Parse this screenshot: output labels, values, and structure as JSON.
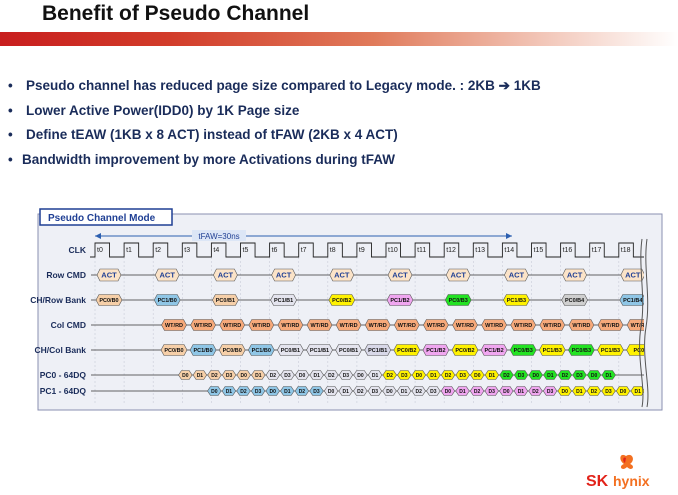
{
  "slide": {
    "title": "Benefit of Pseudo Channel",
    "bullets": [
      {
        "marker": "•",
        "text": "Pseudo channel has reduced page size compared to Legacy mode. : 2KB ➔ 1KB"
      },
      {
        "marker": "•",
        "text": "Lower Active Power(IDD0) by 1K Page size"
      },
      {
        "marker": "•",
        "text": "Define tEAW (1KB x 8 ACT) instead of tFAW (2KB x 4 ACT)"
      },
      {
        "marker": "•",
        "text": "Bandwidth improvement by more Activations during tFAW"
      }
    ]
  },
  "diagram": {
    "panel_title": "Pseudo Channel Mode",
    "tfaw_label": "tFAW=30ns",
    "signals": [
      "CLK",
      "Row CMD",
      "CH/Row Bank",
      "Col CMD",
      "CH/Col Bank",
      "PC0 - 64DQ",
      "PC1 - 64DQ"
    ],
    "clock_labels": [
      "t0",
      "t1",
      "t2",
      "t3",
      "t4",
      "t5",
      "t6",
      "t7",
      "t8",
      "t9",
      "t10",
      "t11",
      "t12",
      "t13",
      "t14",
      "t15",
      "t16",
      "t17",
      "t18"
    ],
    "act_label": "ACT",
    "row_banks": [
      {
        "label": "PC0/B0",
        "color": "#f6cfa8"
      },
      {
        "label": "PC1/B0",
        "color": "#8fc6e6"
      },
      {
        "label": "PC0/B1",
        "color": "#f6cfa8"
      },
      {
        "label": "PC1/B1",
        "color": "#e4e4ee"
      },
      {
        "label": "PC0/B2",
        "color": "#fff200"
      },
      {
        "label": "PC1/B2",
        "color": "#f0a6f0"
      },
      {
        "label": "PC0/B3",
        "color": "#23e223"
      },
      {
        "label": "PC1/B3",
        "color": "#fff200"
      },
      {
        "label": "PC0/B4",
        "color": "#cfcfcf"
      },
      {
        "label": "PC1/B4",
        "color": "#8fc6e6"
      }
    ],
    "col_cmd_label": "WT/RD",
    "col_banks": [
      {
        "label": "PC0/B0",
        "color": "#f6cfa8"
      },
      {
        "label": "PC1/B0",
        "color": "#8fc6e6"
      },
      {
        "label": "PC0/B0",
        "color": "#f6cfa8"
      },
      {
        "label": "PC1/B0",
        "color": "#8fc6e6"
      },
      {
        "label": "PC0/B1",
        "color": "#e4e4ee"
      },
      {
        "label": "PC1/B1",
        "color": "#e4e4ee"
      },
      {
        "label": "PC0/B1",
        "color": "#e4e4ee"
      },
      {
        "label": "PC1/B1",
        "color": "#d8d8e8"
      },
      {
        "label": "PC0/B2",
        "color": "#fff200"
      },
      {
        "label": "PC1/B2",
        "color": "#f0a6f0"
      },
      {
        "label": "PC0/B2",
        "color": "#fff200"
      },
      {
        "label": "PC1/B2",
        "color": "#f0a6f0"
      },
      {
        "label": "PC0/B3",
        "color": "#23e223"
      },
      {
        "label": "PC1/B3",
        "color": "#fff200"
      },
      {
        "label": "PC0/B3",
        "color": "#23e223"
      },
      {
        "label": "PC1/B3",
        "color": "#fff200"
      },
      {
        "label": "PC0/",
        "color": "#fff200"
      }
    ],
    "dq_labels": [
      "D0",
      "D1",
      "D2",
      "D3"
    ],
    "pc0_colors": [
      "#f6cfa8",
      "#f6cfa8",
      "#f6cfa8",
      "#f6cfa8",
      "#f6cfa8",
      "#f6cfa8",
      "#e4e4ee",
      "#e4e4ee",
      "#e4e4ee",
      "#e4e4ee",
      "#e4e4ee",
      "#e4e4ee",
      "#e4e4ee",
      "#e4e4ee",
      "#fff200",
      "#fff200",
      "#fff200",
      "#fff200",
      "#fff200",
      "#fff200",
      "#fff200",
      "#fff200",
      "#23e223",
      "#23e223",
      "#23e223",
      "#23e223",
      "#23e223",
      "#23e223",
      "#23e223",
      "#23e223"
    ],
    "pc1_colors": [
      "#8fc6e6",
      "#8fc6e6",
      "#8fc6e6",
      "#8fc6e6",
      "#8fc6e6",
      "#8fc6e6",
      "#8fc6e6",
      "#8fc6e6",
      "#e4e4ee",
      "#e4e4ee",
      "#e4e4ee",
      "#e4e4ee",
      "#e4e4ee",
      "#e4e4ee",
      "#e4e4ee",
      "#e4e4ee",
      "#f0a6f0",
      "#f0a6f0",
      "#f0a6f0",
      "#f0a6f0",
      "#f0a6f0",
      "#f0a6f0",
      "#f0a6f0",
      "#f0a6f0",
      "#fff200",
      "#fff200",
      "#fff200",
      "#fff200",
      "#fff200",
      "#fff200"
    ]
  },
  "logo": {
    "sk": "SK",
    "hynix": "hynix",
    "color_red": "#e2231a",
    "color_orange": "#f37021"
  }
}
